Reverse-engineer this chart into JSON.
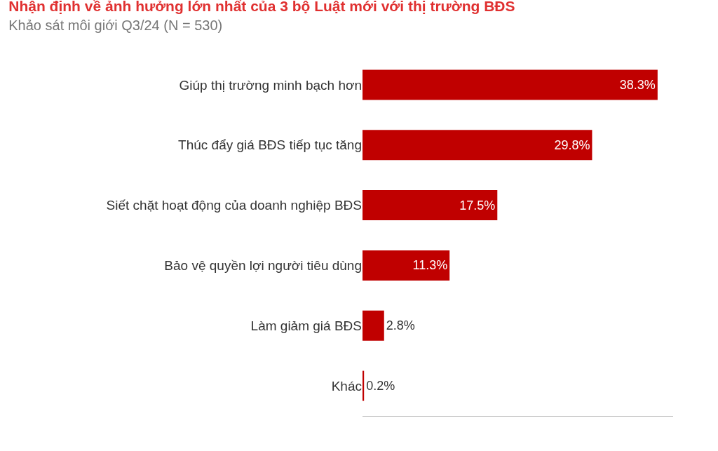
{
  "chart_data": {
    "type": "bar",
    "orientation": "horizontal",
    "title": "Nhận định về ảnh hưởng lớn nhất của 3 bộ Luật mới với thị trường BĐS",
    "subtitle": "Khảo sát môi giới Q3/24 (N = 530)",
    "categories": [
      "Giúp thị trường minh bạch hơn",
      "Thúc đẩy giá BĐS tiếp tục tăng",
      "Siết chặt hoạt động của doanh nghiệp BĐS",
      "Bảo vệ quyền lợi người tiêu dùng",
      "Làm giảm giá BĐS",
      "Khác"
    ],
    "values": [
      38.3,
      29.8,
      17.5,
      11.3,
      2.8,
      0.2
    ],
    "value_labels": [
      "38.3%",
      "29.8%",
      "17.5%",
      "11.3%",
      "2.8%",
      "0.2%"
    ],
    "color": "#c00000",
    "grid": false,
    "legend": false,
    "tick_labels": "y"
  }
}
